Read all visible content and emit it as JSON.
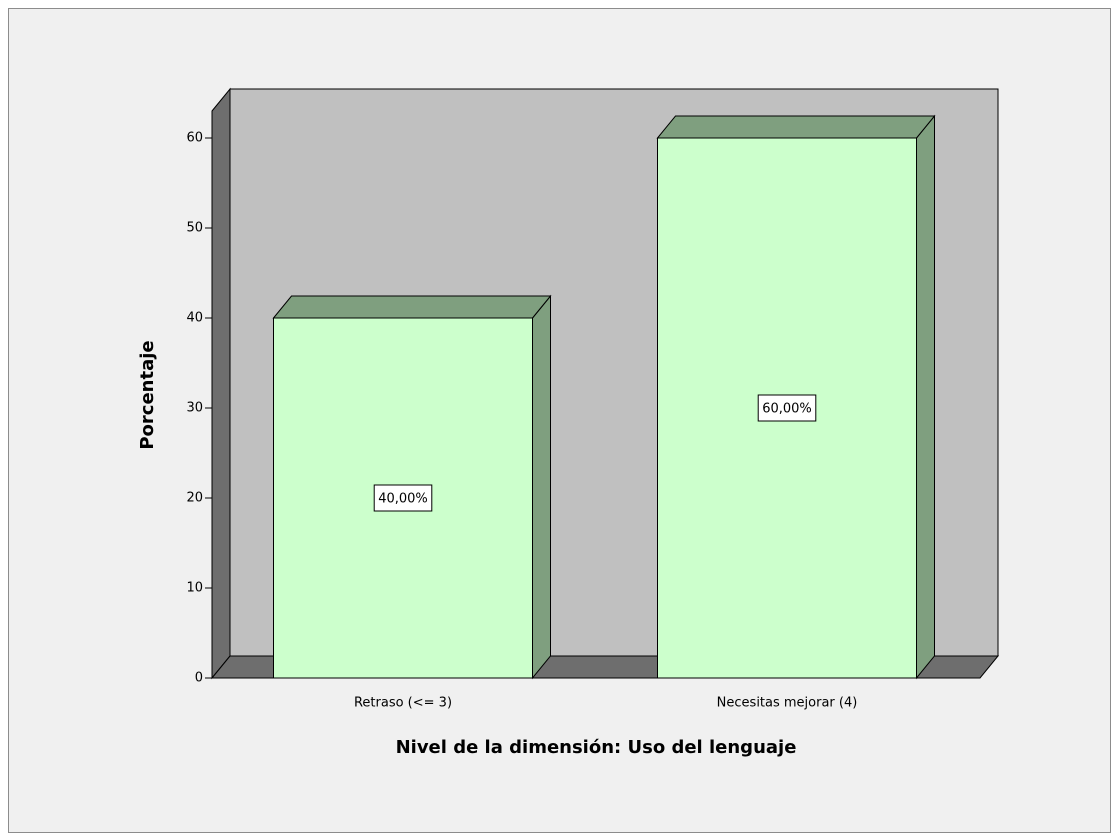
{
  "chart_data": {
    "type": "bar3d",
    "xlabel": "Nivel de la dimensión: Uso del lenguaje",
    "ylabel": "Porcentaje",
    "categories": [
      "Retraso (<= 3)",
      "Necesitas mejorar (4)"
    ],
    "values": [
      40,
      60
    ],
    "value_labels": [
      "40,00%",
      "60,00%"
    ],
    "color": "#ccffcc",
    "ylim": [
      0,
      63
    ],
    "yticks": [
      0,
      10,
      20,
      30,
      40,
      50,
      60
    ]
  }
}
